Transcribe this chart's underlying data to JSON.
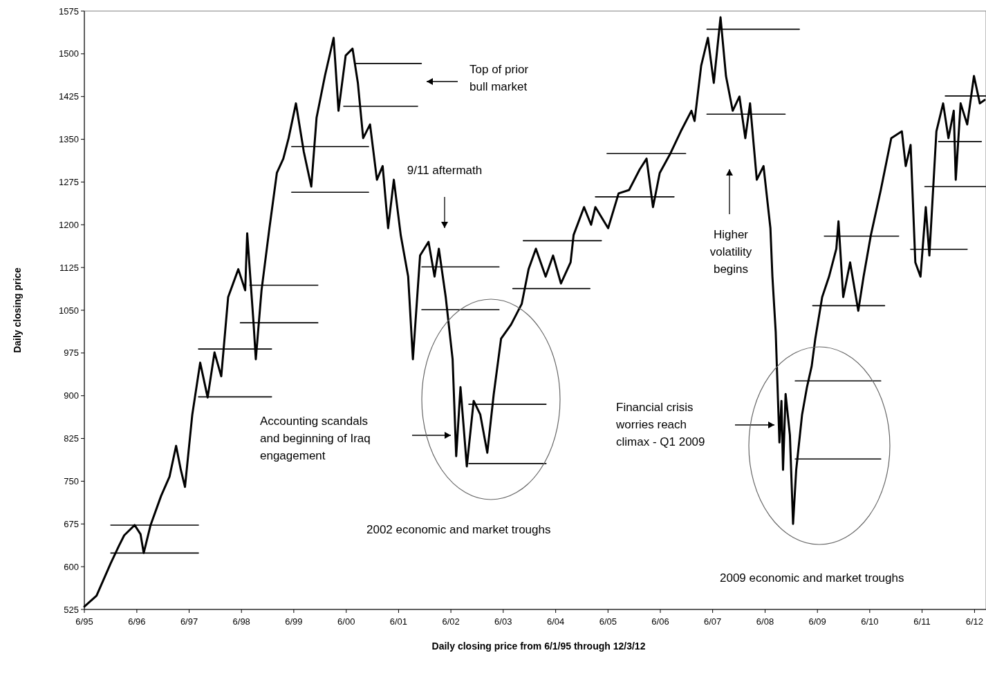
{
  "chart_data": {
    "type": "line",
    "xlabel": "Daily closing price from 6/1/95 through 12/3/12",
    "ylabel": "Daily closing price",
    "xlim": [
      "1995-06-01",
      "2012-08-20"
    ],
    "xticks": [
      {
        "value": "1995-06-01",
        "label": "6/95"
      },
      {
        "value": "1996-06-01",
        "label": "6/96"
      },
      {
        "value": "1997-06-01",
        "label": "6/97"
      },
      {
        "value": "1998-06-01",
        "label": "6/98"
      },
      {
        "value": "1999-06-01",
        "label": "6/99"
      },
      {
        "value": "2000-06-01",
        "label": "6/00"
      },
      {
        "value": "2001-06-01",
        "label": "6/01"
      },
      {
        "value": "2002-06-01",
        "label": "6/02"
      },
      {
        "value": "2003-06-01",
        "label": "6/03"
      },
      {
        "value": "2004-06-01",
        "label": "6/04"
      },
      {
        "value": "2005-06-01",
        "label": "6/05"
      },
      {
        "value": "2006-06-01",
        "label": "6/06"
      },
      {
        "value": "2007-06-01",
        "label": "6/07"
      },
      {
        "value": "2008-06-01",
        "label": "6/08"
      },
      {
        "value": "2009-06-01",
        "label": "6/09"
      },
      {
        "value": "2010-06-01",
        "label": "6/10"
      },
      {
        "value": "2011-06-01",
        "label": "6/11"
      },
      {
        "value": "2012-06-01",
        "label": "6/12"
      }
    ],
    "ylim": [
      525,
      1575
    ],
    "yticks": [
      525,
      600,
      675,
      750,
      825,
      900,
      975,
      1050,
      1125,
      1200,
      1275,
      1350,
      1425,
      1500,
      1575
    ],
    "grid": false,
    "marker": "none",
    "line_style": "solid",
    "series": [
      {
        "color": "#000000",
        "x": [
          "1995-06-01",
          "1995-08-25",
          "1995-12-02",
          "1996-01-29",
          "1996-03-05",
          "1996-05-17",
          "1996-06-27",
          "1996-07-19",
          "1996-09-05",
          "1996-11-17",
          "1997-01-15",
          "1997-03-02",
          "1997-04-04",
          "1997-05-03",
          "1997-06-23",
          "1997-08-17",
          "1997-10-08",
          "1997-11-25",
          "1998-01-11",
          "1998-02-28",
          "1998-05-10",
          "1998-06-27",
          "1998-07-11",
          "1998-08-25",
          "1998-09-09",
          "1998-10-19",
          "1998-12-13",
          "1999-02-03",
          "1999-03-20",
          "1999-04-26",
          "1999-06-16",
          "1999-08-10",
          "1999-10-01",
          "1999-11-07",
          "2000-01-04",
          "2000-03-05",
          "2000-04-08",
          "2000-05-28",
          "2000-07-15",
          "2000-08-21",
          "2000-09-27",
          "2000-11-14",
          "2001-01-01",
          "2001-02-10",
          "2001-03-20",
          "2001-04-29",
          "2001-06-16",
          "2001-08-07",
          "2001-09-09",
          "2001-10-29",
          "2001-12-27",
          "2002-02-07",
          "2002-03-09",
          "2002-04-26",
          "2002-06-13",
          "2002-07-08",
          "2002-08-07",
          "2002-09-20",
          "2002-11-07",
          "2002-12-23",
          "2003-02-10",
          "2003-03-27",
          "2003-05-17",
          "2003-07-26",
          "2003-10-08",
          "2003-11-25",
          "2004-01-15",
          "2004-03-23",
          "2004-05-14",
          "2004-07-08",
          "2004-09-13",
          "2004-10-04",
          "2004-12-16",
          "2005-02-03",
          "2005-03-05",
          "2005-06-02",
          "2005-08-14",
          "2005-10-26",
          "2006-01-08",
          "2006-02-25",
          "2006-04-11",
          "2006-05-28",
          "2006-08-10",
          "2006-10-22",
          "2007-01-04",
          "2007-01-26",
          "2007-03-13",
          "2007-04-29",
          "2007-06-09",
          "2007-07-26",
          "2007-09-02",
          "2007-10-19",
          "2007-12-05",
          "2008-01-15",
          "2008-02-17",
          "2008-04-04",
          "2008-05-21",
          "2008-07-08",
          "2008-07-22",
          "2008-08-14",
          "2008-09-09",
          "2008-09-23",
          "2008-10-04",
          "2008-10-22",
          "2008-11-21",
          "2008-12-13",
          "2009-01-04",
          "2009-02-14",
          "2009-03-20",
          "2009-04-22",
          "2009-05-17",
          "2009-07-04",
          "2009-08-21",
          "2009-10-11",
          "2009-10-26",
          "2009-11-28",
          "2010-01-15",
          "2010-03-13",
          "2010-04-19",
          "2010-06-09",
          "2010-08-17",
          "2010-10-29",
          "2011-01-11",
          "2011-02-07",
          "2011-03-13",
          "2011-04-15",
          "2011-05-21",
          "2011-06-27",
          "2011-07-22",
          "2011-09-09",
          "2011-10-26",
          "2011-12-02",
          "2012-01-08",
          "2012-01-22",
          "2012-02-25",
          "2012-04-11",
          "2012-05-28",
          "2012-07-08",
          "2012-08-10"
        ],
        "values": [
          530,
          549,
          606,
          637,
          655,
          673,
          657,
          624,
          673,
          724,
          758,
          812,
          770,
          740,
          867,
          958,
          897,
          976,
          934,
          1073,
          1122,
          1085,
          1185,
          1025,
          964,
          1085,
          1194,
          1291,
          1316,
          1352,
          1413,
          1328,
          1267,
          1388,
          1461,
          1528,
          1400,
          1497,
          1509,
          1449,
          1352,
          1376,
          1279,
          1303,
          1194,
          1279,
          1182,
          1109,
          964,
          1146,
          1170,
          1109,
          1158,
          1073,
          964,
          794,
          915,
          776,
          891,
          867,
          800,
          903,
          1000,
          1025,
          1061,
          1122,
          1158,
          1109,
          1146,
          1097,
          1134,
          1182,
          1231,
          1200,
          1231,
          1194,
          1255,
          1261,
          1297,
          1316,
          1231,
          1291,
          1325,
          1364,
          1400,
          1382,
          1479,
          1528,
          1449,
          1564,
          1461,
          1400,
          1425,
          1352,
          1413,
          1279,
          1303,
          1194,
          1109,
          1012,
          818,
          891,
          770,
          903,
          831,
          675,
          770,
          867,
          915,
          952,
          1000,
          1073,
          1109,
          1158,
          1206,
          1073,
          1134,
          1049,
          1109,
          1182,
          1261,
          1352,
          1364,
          1303,
          1340,
          1134,
          1109,
          1231,
          1146,
          1364,
          1413,
          1352,
          1400,
          1279,
          1413,
          1376,
          1461,
          1413,
          1419
        ]
      },
      {
        "color": "#000000",
        "x": [
          "1995-12-02",
          "1997-08-05"
        ],
        "values": [
          673,
          673
        ]
      },
      {
        "color": "#000000",
        "x": [
          "1995-12-02",
          "1997-08-05"
        ],
        "values": [
          624,
          624
        ]
      },
      {
        "color": "#000000",
        "x": [
          "1997-08-05",
          "1998-12-28"
        ],
        "values": [
          898,
          898
        ]
      },
      {
        "color": "#000000",
        "x": [
          "1997-08-05",
          "1998-12-28"
        ],
        "values": [
          982,
          982
        ]
      },
      {
        "color": "#000000",
        "x": [
          "1998-05-24",
          "1999-11-16"
        ],
        "values": [
          1028,
          1028
        ]
      },
      {
        "color": "#000000",
        "x": [
          "1998-07-29",
          "1999-11-16"
        ],
        "values": [
          1094,
          1094
        ]
      },
      {
        "color": "#000000",
        "x": [
          "1999-05-17",
          "2000-11-04"
        ],
        "values": [
          1257,
          1257
        ]
      },
      {
        "color": "#000000",
        "x": [
          "1999-05-17",
          "2000-11-04"
        ],
        "values": [
          1337,
          1337
        ]
      },
      {
        "color": "#000000",
        "x": [
          "2000-05-14",
          "2001-10-12"
        ],
        "values": [
          1408,
          1408
        ]
      },
      {
        "color": "#000000",
        "x": [
          "2000-08-07",
          "2001-11-07"
        ],
        "values": [
          1483,
          1483
        ]
      },
      {
        "color": "#000000",
        "x": [
          "2001-11-10",
          "2003-05-03"
        ],
        "values": [
          1126,
          1126
        ]
      },
      {
        "color": "#000000",
        "x": [
          "2001-11-10",
          "2003-05-03"
        ],
        "values": [
          1051,
          1051
        ]
      },
      {
        "color": "#000000",
        "x": [
          "2002-10-04",
          "2004-03-26"
        ],
        "values": [
          885,
          885
        ]
      },
      {
        "color": "#000000",
        "x": [
          "2002-10-04",
          "2004-03-26"
        ],
        "values": [
          781,
          781
        ]
      },
      {
        "color": "#000000",
        "x": [
          "2003-08-07",
          "2005-01-26"
        ],
        "values": [
          1088,
          1088
        ]
      },
      {
        "color": "#000000",
        "x": [
          "2003-10-19",
          "2005-04-16"
        ],
        "values": [
          1172,
          1172
        ]
      },
      {
        "color": "#000000",
        "x": [
          "2005-03-05",
          "2006-09-05"
        ],
        "values": [
          1249,
          1249
        ]
      },
      {
        "color": "#000000",
        "x": [
          "2005-05-25",
          "2006-11-25"
        ],
        "values": [
          1325,
          1325
        ]
      },
      {
        "color": "#000000",
        "x": [
          "2007-04-22",
          "2009-01-26"
        ],
        "values": [
          1543,
          1543
        ]
      },
      {
        "color": "#000000",
        "x": [
          "2007-04-22",
          "2008-10-19"
        ],
        "values": [
          1394,
          1394
        ]
      },
      {
        "color": "#000000",
        "x": [
          "2008-12-28",
          "2010-08-17"
        ],
        "values": [
          926,
          926
        ]
      },
      {
        "color": "#000000",
        "x": [
          "2008-12-28",
          "2010-08-17"
        ],
        "values": [
          789,
          789
        ]
      },
      {
        "color": "#000000",
        "x": [
          "2009-04-29",
          "2010-09-13"
        ],
        "values": [
          1058,
          1058
        ]
      },
      {
        "color": "#000000",
        "x": [
          "2009-07-19",
          "2010-12-20"
        ],
        "values": [
          1180,
          1180
        ]
      },
      {
        "color": "#000000",
        "x": [
          "2011-03-13",
          "2012-04-11"
        ],
        "values": [
          1157,
          1157
        ]
      },
      {
        "color": "#000000",
        "x": [
          "2011-06-20",
          "2012-08-17"
        ],
        "values": [
          1267,
          1267
        ]
      },
      {
        "color": "#000000",
        "x": [
          "2011-09-24",
          "2012-07-19"
        ],
        "values": [
          1346,
          1346
        ]
      },
      {
        "color": "#000000",
        "x": [
          "2011-11-10",
          "2012-08-17"
        ],
        "values": [
          1426,
          1426
        ]
      }
    ],
    "annotations": [
      "Top of prior bull market",
      "9/11 aftermath",
      "Accounting scandals and beginning of Iraq engagement",
      "Higher volatility begins",
      "Financial crisis worries reach climax - Q1 2009",
      "2002 economic and market troughs",
      "2009 economic and market troughs"
    ]
  }
}
